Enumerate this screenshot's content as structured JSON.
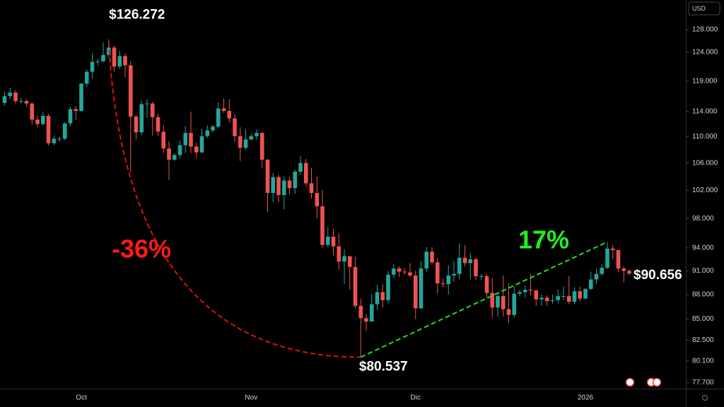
{
  "chart_data": {
    "type": "candlestick",
    "currency": "USD",
    "log_scale": true,
    "grid": false,
    "up_color": "#26a69a",
    "down_color": "#ef5350",
    "ylim": [
      77030,
      133490
    ],
    "yticks": [
      {
        "value": 128000,
        "label": "128.000"
      },
      {
        "value": 124000,
        "label": "124.000"
      },
      {
        "value": 119000,
        "label": "119.000"
      },
      {
        "value": 114000,
        "label": "114.000"
      },
      {
        "value": 110000,
        "label": "110.000"
      },
      {
        "value": 106000,
        "label": "106.000"
      },
      {
        "value": 102000,
        "label": "102.000"
      },
      {
        "value": 98000,
        "label": "98.000"
      },
      {
        "value": 94000,
        "label": "94.000"
      },
      {
        "value": 91000,
        "label": "91.000"
      },
      {
        "value": 88000,
        "label": "88.000"
      },
      {
        "value": 85000,
        "label": "85.000"
      },
      {
        "value": 82500,
        "label": "82.500"
      },
      {
        "value": 80100,
        "label": "80.100"
      },
      {
        "value": 77700,
        "label": "77.700"
      }
    ],
    "categories": [
      null,
      null,
      null,
      null,
      null,
      null,
      null,
      null,
      null,
      null,
      null,
      null,
      null,
      null,
      "Oct",
      null,
      null,
      null,
      null,
      null,
      null,
      null,
      null,
      null,
      null,
      null,
      null,
      null,
      null,
      null,
      null,
      null,
      null,
      null,
      null,
      null,
      null,
      null,
      null,
      null,
      null,
      null,
      null,
      null,
      null,
      "Nov",
      null,
      null,
      null,
      null,
      null,
      null,
      null,
      null,
      null,
      null,
      null,
      null,
      null,
      null,
      null,
      null,
      null,
      null,
      null,
      null,
      null,
      null,
      null,
      null,
      null,
      null,
      null,
      null,
      null,
      "Dic",
      null,
      null,
      null,
      null,
      null,
      null,
      null,
      null,
      null,
      null,
      null,
      null,
      null,
      null,
      null,
      null,
      null,
      null,
      null,
      null,
      null,
      null,
      null,
      null,
      null,
      null,
      null,
      null,
      null,
      null,
      "2026",
      null,
      null,
      null,
      null,
      null,
      null,
      null,
      null
    ],
    "open": [
      115400,
      116500,
      117100,
      115700,
      115700,
      115300,
      112700,
      112000,
      113300,
      109000,
      109700,
      109700,
      112100,
      114400,
      114100,
      118600,
      120600,
      122300,
      122400,
      123500,
      124800,
      121500,
      123300,
      121700,
      113200,
      110700,
      115200,
      115300,
      113100,
      110800,
      108200,
      106500,
      107200,
      108700,
      110600,
      108500,
      107600,
      110100,
      111000,
      111600,
      114500,
      114100,
      112900,
      110100,
      108300,
      109600,
      110100,
      110600,
      106500,
      101600,
      103900,
      101300,
      103400,
      102300,
      104700,
      106000,
      103000,
      101600,
      99700,
      94400,
      95500,
      94200,
      92200,
      92900,
      91500,
      86600,
      85100,
      84700,
      86800,
      88300,
      87300,
      90500,
      91300,
      90900,
      90800,
      90400,
      86300,
      91300,
      93500,
      92100,
      89400,
      89300,
      90400,
      90600,
      92700,
      92000,
      92500,
      90300,
      90300,
      88200,
      86400,
      87800,
      86200,
      85500,
      88100,
      88300,
      88600,
      88500,
      87400,
      87600,
      87200,
      87300,
      87800,
      87800,
      87100,
      88400,
      87500,
      88700,
      89900,
      90600,
      91400,
      93900,
      93700,
      91300,
      91000
    ],
    "high": [
      117300,
      117900,
      117500,
      116200,
      116000,
      115500,
      113400,
      113900,
      113600,
      110200,
      110000,
      112300,
      114800,
      114900,
      118700,
      121000,
      123800,
      122900,
      125700,
      126272,
      125100,
      124200,
      123800,
      122500,
      113400,
      115800,
      116000,
      115600,
      113600,
      111900,
      109300,
      107500,
      109400,
      111700,
      114000,
      109100,
      111300,
      111800,
      111900,
      115500,
      116100,
      116000,
      113600,
      111500,
      111200,
      110500,
      111200,
      110700,
      106600,
      104500,
      104200,
      104000,
      103900,
      105000,
      107000,
      106600,
      105300,
      104000,
      102000,
      96800,
      96600,
      96000,
      93800,
      92900,
      92800,
      87500,
      85600,
      88100,
      89200,
      89300,
      91000,
      91900,
      91600,
      91300,
      92000,
      91000,
      92300,
      94100,
      94100,
      92700,
      90000,
      91700,
      92300,
      94600,
      94400,
      93300,
      92700,
      90600,
      90600,
      90100,
      88200,
      90400,
      89400,
      89000,
      88600,
      89100,
      90600,
      88600,
      88000,
      87900,
      88000,
      88600,
      89000,
      90300,
      88900,
      89000,
      88800,
      90900,
      91300,
      91900,
      94800,
      94400,
      93800,
      91600,
      91200
    ],
    "low": [
      115000,
      116000,
      115300,
      115300,
      114900,
      111900,
      111500,
      111800,
      108600,
      108700,
      109200,
      109500,
      111600,
      112700,
      113900,
      118000,
      119400,
      121700,
      122200,
      123100,
      120600,
      121100,
      119700,
      104600,
      109600,
      110200,
      113000,
      110200,
      110200,
      107500,
      103500,
      106300,
      106700,
      107500,
      107500,
      106700,
      107500,
      109800,
      110700,
      111300,
      113800,
      112200,
      109200,
      106300,
      108000,
      109400,
      109500,
      105300,
      98900,
      100300,
      100300,
      99300,
      101400,
      101500,
      104300,
      102500,
      100800,
      98000,
      94000,
      94100,
      93000,
      91200,
      89300,
      88600,
      86300,
      80537,
      83600,
      85200,
      86100,
      86400,
      86900,
      90100,
      90200,
      90500,
      90200,
      85000,
      86200,
      90900,
      91800,
      88100,
      88900,
      88000,
      89600,
      89900,
      91600,
      89900,
      89800,
      89800,
      87600,
      85200,
      85300,
      85300,
      84500,
      85200,
      87800,
      87600,
      87900,
      86600,
      86600,
      86600,
      86900,
      86900,
      87300,
      86800,
      86800,
      87200,
      87400,
      88600,
      89300,
      90400,
      91200,
      92500,
      90800,
      89500,
      90400
    ],
    "close": [
      116500,
      117100,
      115700,
      115700,
      115300,
      112700,
      112000,
      113300,
      109000,
      109700,
      109700,
      112100,
      114400,
      114100,
      118600,
      120600,
      122300,
      122400,
      123500,
      124800,
      121500,
      123300,
      121700,
      113200,
      110700,
      115200,
      115300,
      113100,
      110800,
      108200,
      106500,
      107200,
      108700,
      110600,
      108500,
      107600,
      110100,
      111000,
      111600,
      114500,
      114100,
      112900,
      110100,
      108300,
      109600,
      110100,
      110600,
      106500,
      101600,
      103900,
      101300,
      103400,
      102300,
      104700,
      106000,
      103000,
      101600,
      99700,
      94400,
      95500,
      94200,
      92200,
      92900,
      91500,
      86600,
      85100,
      84700,
      86800,
      88300,
      87300,
      90500,
      91300,
      90900,
      90800,
      90400,
      86300,
      91300,
      93500,
      92100,
      89400,
      89300,
      90400,
      90600,
      92700,
      92000,
      92500,
      90300,
      90300,
      88200,
      86400,
      87800,
      86200,
      85500,
      88100,
      88300,
      88600,
      88500,
      87400,
      87600,
      87200,
      87300,
      87800,
      87800,
      87100,
      88400,
      87500,
      88700,
      89900,
      90600,
      91400,
      93900,
      93700,
      91300,
      91000,
      90656
    ],
    "annotations": [
      {
        "text": "$126.272"
      },
      {
        "text": "$80.537"
      },
      {
        "text": "$90.656"
      },
      {
        "text": "-36%"
      },
      {
        "text": "17%"
      }
    ]
  }
}
